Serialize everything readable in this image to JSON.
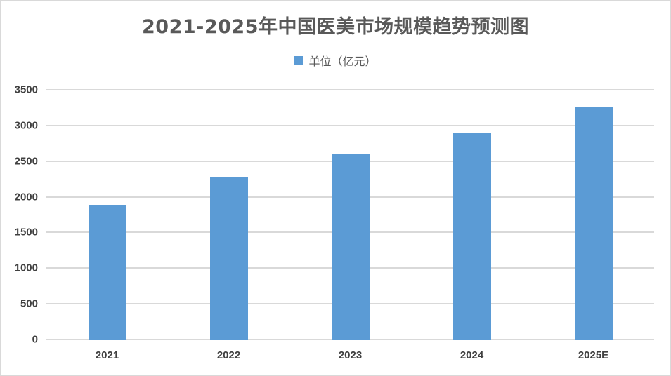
{
  "chart_data": {
    "type": "bar",
    "title": "2021-2025年中国医美市场规模趋势预测图",
    "categories": [
      "2021",
      "2022",
      "2023",
      "2024",
      "2025E"
    ],
    "series": [
      {
        "name": "单位（亿元）",
        "values": [
          1887,
          2270,
          2604,
          2900,
          3254
        ],
        "color": "#5b9bd5"
      }
    ],
    "xlabel": "",
    "ylabel": "",
    "ylim": [
      0,
      3500
    ],
    "yticks": [
      0,
      500,
      1000,
      1500,
      2000,
      2500,
      3000,
      3500
    ],
    "grid": true,
    "legend_position": "top"
  },
  "colors": {
    "bar": "#5b9bd5",
    "grid": "#d9d9d9",
    "title_text": "#595959",
    "axis_text": "#404040"
  }
}
